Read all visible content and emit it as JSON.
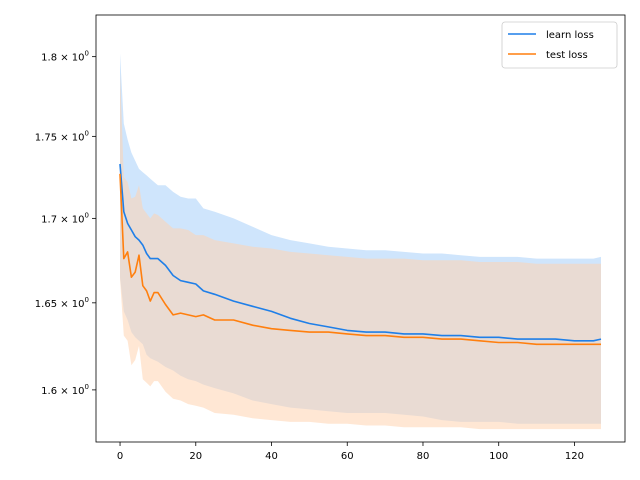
{
  "chart_data": {
    "type": "line",
    "title": "",
    "xlabel": "",
    "ylabel": "",
    "y_scale": "log",
    "xlim": [
      -6.35,
      133.35
    ],
    "ylim": [
      1.5708,
      1.8267
    ],
    "x_ticks": [
      0,
      20,
      40,
      60,
      80,
      100,
      120
    ],
    "x_tick_labels": [
      "0",
      "20",
      "40",
      "60",
      "80",
      "100",
      "120"
    ],
    "y_ticks": [
      1.6,
      1.65,
      1.7,
      1.75,
      1.8
    ],
    "y_tick_labels": [
      "1.6",
      "1.65",
      "1.7",
      "1.75",
      "1.8"
    ],
    "y_tick_exponent": "0",
    "grid": false,
    "legend_position": "upper-right",
    "series": [
      {
        "name": "learn loss",
        "color": "#1f7fe8",
        "band_color": "#cfe5fc",
        "x": [
          0,
          1,
          2,
          3,
          4,
          5,
          6,
          7,
          8,
          9,
          10,
          12,
          14,
          16,
          18,
          20,
          22,
          25,
          30,
          35,
          40,
          45,
          50,
          55,
          60,
          65,
          70,
          75,
          80,
          85,
          90,
          95,
          100,
          105,
          110,
          115,
          120,
          125,
          127
        ],
        "values": [
          1.733,
          1.704,
          1.697,
          1.693,
          1.689,
          1.687,
          1.684,
          1.679,
          1.676,
          1.676,
          1.676,
          1.672,
          1.666,
          1.663,
          1.662,
          1.661,
          1.657,
          1.655,
          1.651,
          1.648,
          1.645,
          1.641,
          1.638,
          1.636,
          1.634,
          1.633,
          1.633,
          1.632,
          1.632,
          1.631,
          1.631,
          1.63,
          1.63,
          1.629,
          1.629,
          1.629,
          1.628,
          1.628,
          1.629
        ],
        "band_upper": [
          1.802,
          1.758,
          1.748,
          1.74,
          1.735,
          1.73,
          1.728,
          1.726,
          1.724,
          1.722,
          1.72,
          1.72,
          1.716,
          1.713,
          1.712,
          1.712,
          1.706,
          1.704,
          1.7,
          1.695,
          1.69,
          1.687,
          1.685,
          1.683,
          1.682,
          1.681,
          1.681,
          1.68,
          1.679,
          1.679,
          1.678,
          1.677,
          1.677,
          1.677,
          1.676,
          1.676,
          1.676,
          1.676,
          1.677
        ],
        "band_lower": [
          1.665,
          1.645,
          1.64,
          1.633,
          1.63,
          1.628,
          1.626,
          1.62,
          1.618,
          1.617,
          1.616,
          1.613,
          1.611,
          1.608,
          1.606,
          1.605,
          1.603,
          1.601,
          1.598,
          1.594,
          1.592,
          1.59,
          1.589,
          1.588,
          1.587,
          1.587,
          1.587,
          1.586,
          1.585,
          1.583,
          1.582,
          1.582,
          1.582,
          1.581,
          1.581,
          1.581,
          1.581,
          1.581,
          1.581
        ]
      },
      {
        "name": "test loss",
        "color": "#ff7f0e",
        "band_color": "#ffd4b0",
        "x": [
          0,
          1,
          2,
          3,
          4,
          5,
          6,
          7,
          8,
          9,
          10,
          12,
          14,
          16,
          18,
          20,
          22,
          25,
          30,
          35,
          40,
          45,
          50,
          55,
          60,
          65,
          70,
          75,
          80,
          85,
          90,
          95,
          100,
          105,
          110,
          115,
          120,
          125,
          127
        ],
        "values": [
          1.727,
          1.676,
          1.68,
          1.665,
          1.668,
          1.678,
          1.66,
          1.657,
          1.651,
          1.656,
          1.656,
          1.649,
          1.643,
          1.644,
          1.643,
          1.642,
          1.643,
          1.64,
          1.64,
          1.637,
          1.635,
          1.634,
          1.633,
          1.633,
          1.632,
          1.631,
          1.631,
          1.63,
          1.63,
          1.629,
          1.629,
          1.628,
          1.627,
          1.627,
          1.626,
          1.626,
          1.626,
          1.626,
          1.626
        ],
        "band_upper": [
          1.79,
          1.725,
          1.722,
          1.712,
          1.713,
          1.72,
          1.706,
          1.703,
          1.7,
          1.703,
          1.702,
          1.698,
          1.694,
          1.694,
          1.693,
          1.69,
          1.69,
          1.687,
          1.685,
          1.683,
          1.682,
          1.68,
          1.679,
          1.678,
          1.677,
          1.676,
          1.676,
          1.676,
          1.675,
          1.675,
          1.675,
          1.674,
          1.674,
          1.674,
          1.673,
          1.673,
          1.673,
          1.673,
          1.673
        ],
        "band_lower": [
          1.664,
          1.631,
          1.628,
          1.614,
          1.617,
          1.625,
          1.606,
          1.604,
          1.602,
          1.605,
          1.605,
          1.599,
          1.595,
          1.594,
          1.592,
          1.591,
          1.59,
          1.587,
          1.586,
          1.584,
          1.583,
          1.582,
          1.582,
          1.581,
          1.581,
          1.58,
          1.58,
          1.579,
          1.579,
          1.579,
          1.579,
          1.578,
          1.578,
          1.578,
          1.578,
          1.578,
          1.578,
          1.578,
          1.578
        ]
      }
    ]
  }
}
